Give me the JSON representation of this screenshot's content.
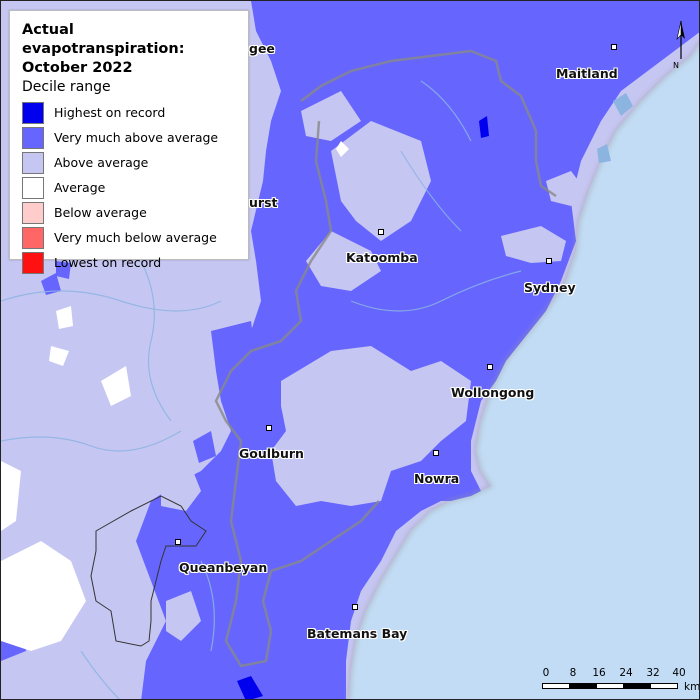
{
  "legend": {
    "title_line1": "Actual evapotranspiration:",
    "title_line2": "October 2022",
    "subtitle": "Decile range",
    "items": [
      {
        "label": "Highest on record",
        "color": "#0000ee"
      },
      {
        "label": "Very much above average",
        "color": "#6666ff"
      },
      {
        "label": "Above average",
        "color": "#c6c6f3"
      },
      {
        "label": "Average",
        "color": "#ffffff"
      },
      {
        "label": "Below average",
        "color": "#ffcccc"
      },
      {
        "label": "Very much below average",
        "color": "#ff6666"
      },
      {
        "label": "Lowest on record",
        "color": "#ff1111"
      }
    ]
  },
  "places": {
    "mudgee": "gee",
    "maitland": "Maitland",
    "bathurst": "urst",
    "katoomba": "Katoomba",
    "sydney": "Sydney",
    "wollongong": "Wollongong",
    "goulburn": "Goulburn",
    "nowra": "Nowra",
    "queanbeyan": "Queanbeyan",
    "batemans_bay": "Batemans Bay"
  },
  "scale": {
    "ticks": [
      "0",
      "8",
      "16",
      "24",
      "32",
      "40"
    ],
    "unit": "km"
  },
  "north_label": "N",
  "colors": {
    "ocean": "#c2dcf5",
    "very_much_above": "#6666ff",
    "above": "#c6c6f3",
    "highest": "#0000ee",
    "average": "#ffffff",
    "rivers": "#8cb4e0",
    "boundary": "#888888"
  }
}
